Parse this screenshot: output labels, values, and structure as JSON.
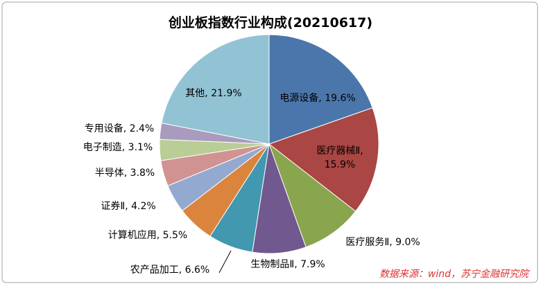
{
  "chart_data": {
    "type": "pie",
    "title": "创业板指数行业构成(20210617)",
    "labels": [
      "电源设备, 19.6%",
      "医疗器械Ⅱ, 15.9%",
      "医疗服务Ⅱ, 9.0%",
      "生物制品Ⅱ, 7.9%",
      "农产品加工, 6.6%",
      "计算机应用, 5.5%",
      "证券Ⅱ, 4.2%",
      "半导体, 3.8%",
      "电子制造, 3.1%",
      "专用设备, 2.4%",
      "其他, 21.9%"
    ],
    "values": [
      19.6,
      15.9,
      9.0,
      7.9,
      6.6,
      5.5,
      4.2,
      3.8,
      3.1,
      2.4,
      21.9
    ],
    "colors": [
      "#4a76ab",
      "#aa4643",
      "#89a54e",
      "#71588f",
      "#4198af",
      "#db843d",
      "#93a9cf",
      "#d19392",
      "#b9cd96",
      "#a99bbd",
      "#92c3d4"
    ],
    "source": "数据来源：wind，苏宁金融研究院"
  }
}
